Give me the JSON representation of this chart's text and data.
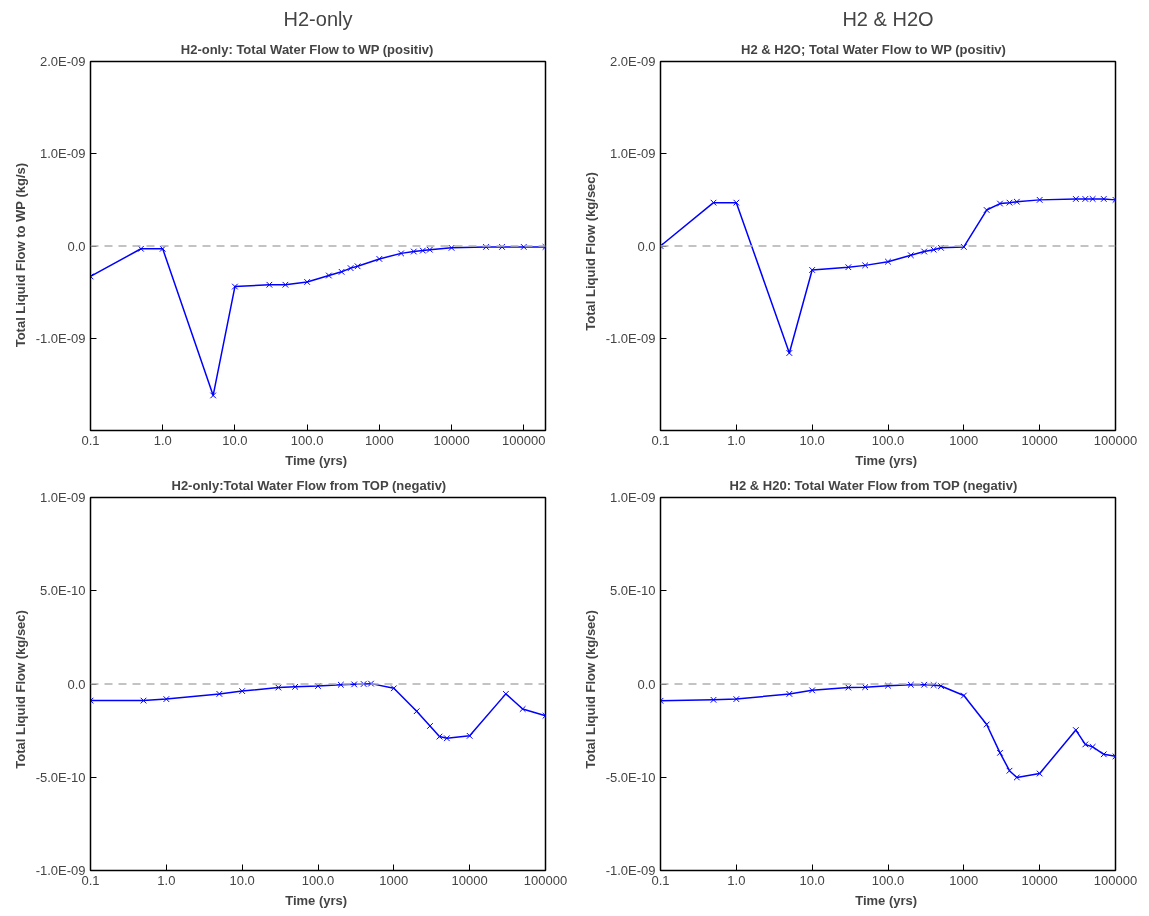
{
  "chart_data": [
    {
      "type": "line",
      "subtitle": "H2-only",
      "title": "H2-only:  Total  Water  Flow  to  WP  (positiv)",
      "xlabel": "Time  (yrs)",
      "ylabel": "Total  Liquid  Flow  to  WP  (kg/s)",
      "log": "x",
      "marker": "cross",
      "line_style": "solid",
      "xlim": [
        0.1,
        200000
      ],
      "xticks": [
        0.1,
        {
          "value": 1,
          "label": "1.0"
        },
        {
          "value": 10,
          "label": "10.0"
        },
        {
          "value": 100,
          "label": "100.0"
        },
        1000,
        10000,
        100000
      ],
      "ylim": [
        -2e-09,
        2e-09
      ],
      "yticks": [
        {
          "value": -2e-09,
          "label": null
        },
        {
          "value": -1e-09,
          "label": "-1.0E-09"
        },
        {
          "value": 0,
          "label": "0.0"
        },
        {
          "value": 1e-09,
          "label": "1.0E-09"
        },
        {
          "value": 2e-09,
          "label": "2.0E-09"
        }
      ],
      "ref_lines": [
        {
          "axis": "y",
          "value": 0,
          "color": "#b0b0b0",
          "line_style": "dashed"
        }
      ],
      "x": [
        0.1,
        0.5,
        1,
        5,
        10,
        30,
        50,
        100,
        200,
        300,
        400,
        500,
        1000,
        2000,
        3000,
        4000,
        5000,
        10000,
        30000,
        50000,
        100000,
        200000
      ],
      "series": [
        {
          "color": "#0000ff",
          "values": [
            -3.3e-10,
            -3e-11,
            -3e-11,
            -1.62e-09,
            -4.4e-10,
            -4.2e-10,
            -4.2e-10,
            -3.9e-10,
            -3.2e-10,
            -2.8e-10,
            -2.4e-10,
            -2.2e-10,
            -1.4e-10,
            -8e-11,
            -6e-11,
            -5e-11,
            -4e-11,
            -2e-11,
            -1e-11,
            -1e-11,
            -1e-11,
            -1e-11
          ]
        }
      ]
    },
    {
      "type": "line",
      "subtitle": "H2 & H2O",
      "title": "H2  &  H2O;  Total  Water  Flow  to  WP  (positiv)",
      "xlabel": "Time  (yrs)",
      "ylabel": "Total  Liquid  Flow  (kg/sec)",
      "log": "x",
      "marker": "cross",
      "line_style": "solid",
      "xlim": [
        0.1,
        100000
      ],
      "xticks": [
        0.1,
        {
          "value": 1,
          "label": "1.0"
        },
        {
          "value": 10,
          "label": "10.0"
        },
        {
          "value": 100,
          "label": "100.0"
        },
        1000,
        10000,
        100000
      ],
      "ylim": [
        -2e-09,
        2e-09
      ],
      "yticks": [
        {
          "value": -2e-09,
          "label": null
        },
        {
          "value": -1e-09,
          "label": "-1.0E-09"
        },
        {
          "value": 0,
          "label": "0.0"
        },
        {
          "value": 1e-09,
          "label": "1.0E-09"
        },
        {
          "value": 2e-09,
          "label": "2.0E-09"
        }
      ],
      "ref_lines": [
        {
          "axis": "y",
          "value": 0,
          "color": "#b0b0b0",
          "line_style": "dashed"
        }
      ],
      "x": [
        0.1,
        0.5,
        1,
        5,
        10,
        30,
        50,
        100,
        200,
        300,
        400,
        500,
        1000,
        2000,
        3000,
        4000,
        5000,
        10000,
        30000,
        40000,
        50000,
        70000,
        100000
      ],
      "series": [
        {
          "color": "#0000ff",
          "values": [
            0,
            4.7e-10,
            4.7e-10,
            -1.16e-09,
            -2.6e-10,
            -2.3e-10,
            -2.1e-10,
            -1.7e-10,
            -1e-10,
            -6e-11,
            -4e-11,
            -2e-11,
            -1e-11,
            3.9e-10,
            4.6e-10,
            4.7e-10,
            4.8e-10,
            5e-10,
            5.1e-10,
            5.1e-10,
            5.1e-10,
            5.1e-10,
            5e-10
          ]
        }
      ]
    },
    {
      "type": "line",
      "title": "H2-only:Total  Water  Flow  from  TOP  (negativ)",
      "xlabel": "Time  (yrs)",
      "ylabel": "Total  Liquid  Flow  (kg/sec)",
      "log": "x",
      "marker": "cross",
      "line_style": "solid",
      "xlim": [
        0.1,
        100000
      ],
      "xticks": [
        0.1,
        {
          "value": 1,
          "label": "1.0"
        },
        {
          "value": 10,
          "label": "10.0"
        },
        {
          "value": 100,
          "label": "100.0"
        },
        1000,
        10000,
        100000
      ],
      "ylim": [
        -1e-09,
        1e-09
      ],
      "yticks": [
        {
          "value": -1e-09,
          "label": "-1.0E-09"
        },
        {
          "value": -5e-10,
          "label": "-5.0E-10"
        },
        {
          "value": 0,
          "label": "0.0"
        },
        {
          "value": 5e-10,
          "label": "5.0E-10"
        },
        {
          "value": 1e-09,
          "label": "1.0E-09"
        }
      ],
      "ref_lines": [
        {
          "axis": "y",
          "value": 0,
          "color": "#b0b0b0",
          "line_style": "dashed"
        }
      ],
      "x": [
        0.1,
        0.5,
        1,
        5,
        10,
        30,
        50,
        100,
        200,
        300,
        400,
        500,
        1000,
        2000,
        3000,
        4000,
        5000,
        10000,
        30000,
        50000,
        100000
      ],
      "series": [
        {
          "color": "#0000ff",
          "values": [
            -8.9e-11,
            -8.9e-11,
            -8.1e-11,
            -5.3e-11,
            -3.8e-11,
            -1.9e-11,
            -1.5e-11,
            -1.1e-11,
            -4e-12,
            -2e-12,
            0,
            2e-12,
            -2.3e-11,
            -1.46e-10,
            -2.25e-10,
            -2.82e-10,
            -2.91e-10,
            -2.78e-10,
            -5.3e-11,
            -1.34e-10,
            -1.7e-10
          ]
        }
      ]
    },
    {
      "type": "line",
      "title": "H2  &  H20:  Total  Water  Flow  from  TOP  (negativ)",
      "xlabel": "Time  (yrs)",
      "ylabel": "Total  Liquid  Flow  (kg/sec)",
      "log": "x",
      "marker": "cross",
      "line_style": "solid",
      "xlim": [
        0.1,
        100000
      ],
      "xticks": [
        0.1,
        {
          "value": 1,
          "label": "1.0"
        },
        {
          "value": 10,
          "label": "10.0"
        },
        {
          "value": 100,
          "label": "100.0"
        },
        1000,
        10000,
        100000
      ],
      "ylim": [
        -1e-09,
        1e-09
      ],
      "yticks": [
        {
          "value": -1e-09,
          "label": "-1.0E-09"
        },
        {
          "value": -5e-10,
          "label": "-5.0E-10"
        },
        {
          "value": 0,
          "label": "0.0"
        },
        {
          "value": 5e-10,
          "label": "5.0E-10"
        },
        {
          "value": 1e-09,
          "label": "1.0E-09"
        }
      ],
      "ref_lines": [
        {
          "axis": "y",
          "value": 0,
          "color": "#b0b0b0",
          "line_style": "dashed"
        }
      ],
      "x": [
        0.1,
        0.5,
        1,
        5,
        10,
        30,
        50,
        100,
        200,
        300,
        400,
        500,
        1000,
        2000,
        3000,
        4000,
        5000,
        10000,
        30000,
        40000,
        50000,
        70000,
        100000
      ],
      "series": [
        {
          "color": "#0000ff",
          "values": [
            -9e-11,
            -8.5e-11,
            -8.1e-11,
            -5.3e-11,
            -3.4e-11,
            -1.9e-11,
            -1.7e-11,
            -9e-12,
            -4e-12,
            -4e-12,
            -6e-12,
            -1.1e-11,
            -6.2e-11,
            -2.17e-10,
            -3.69e-10,
            -4.65e-10,
            -5.01e-10,
            -4.8e-10,
            -2.47e-10,
            -3.24e-10,
            -3.37e-10,
            -3.77e-10,
            -3.88e-10
          ]
        }
      ]
    }
  ]
}
